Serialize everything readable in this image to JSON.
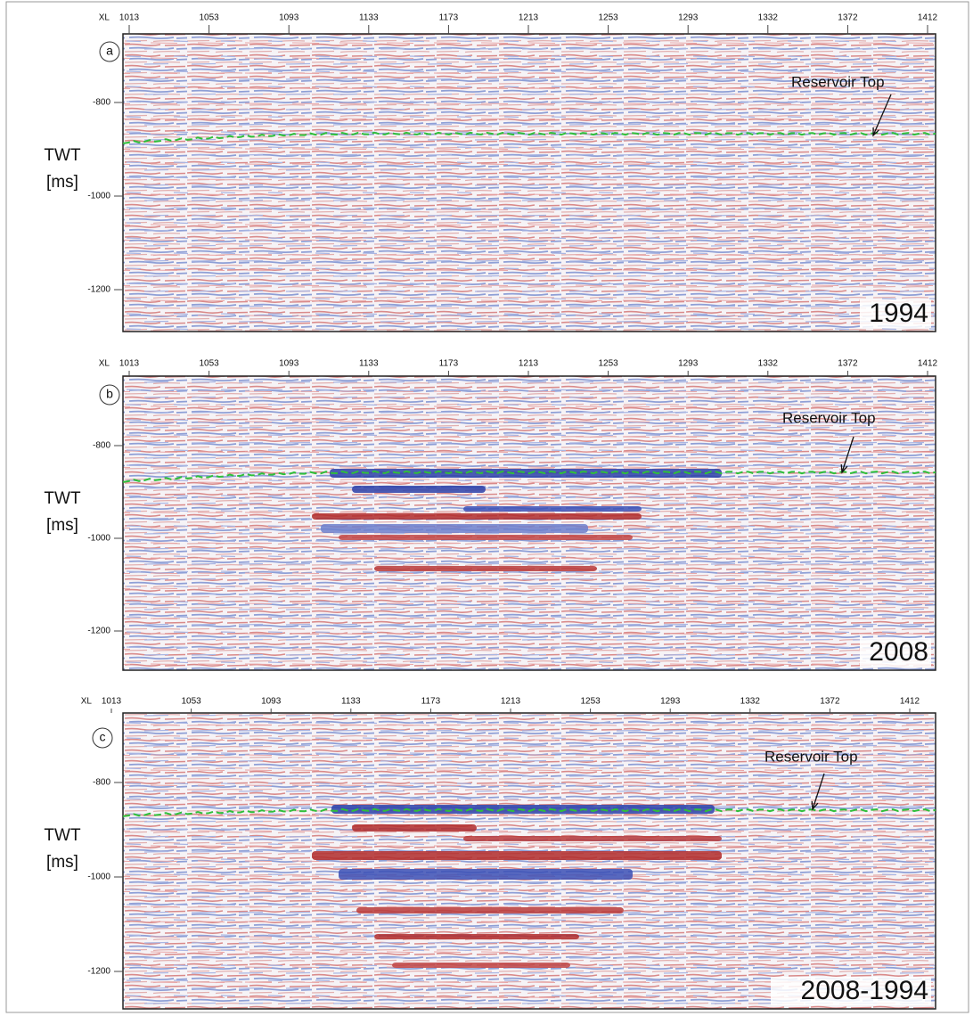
{
  "panels": [
    {
      "label": "a",
      "x_axis_label": "XL",
      "xticks": [
        1013,
        1053,
        1093,
        1133,
        1173,
        1213,
        1253,
        1293,
        1332,
        1372,
        1412
      ],
      "yticks": [
        -800,
        -1000,
        -1200
      ],
      "y_label_lines": [
        "TWT",
        "[ms]"
      ],
      "annotation": "Reservoir Top",
      "caption": "1994"
    },
    {
      "label": "b",
      "x_axis_label": "XL",
      "xticks": [
        1013,
        1053,
        1093,
        1133,
        1173,
        1213,
        1253,
        1293,
        1332,
        1372,
        1412
      ],
      "yticks": [
        -800,
        -1000,
        -1200
      ],
      "y_label_lines": [
        "TWT",
        "[ms]"
      ],
      "annotation": "Reservoir Top",
      "caption": "2008"
    },
    {
      "label": "c",
      "x_axis_label": "XL",
      "xticks": [
        1013,
        1053,
        1093,
        1133,
        1173,
        1213,
        1253,
        1293,
        1332,
        1372,
        1412
      ],
      "yticks": [
        -800,
        -1000,
        -1200
      ],
      "y_label_lines": [
        "TWT",
        "[ms]"
      ],
      "annotation": "Reservoir Top",
      "caption": "2008-1994"
    }
  ]
}
